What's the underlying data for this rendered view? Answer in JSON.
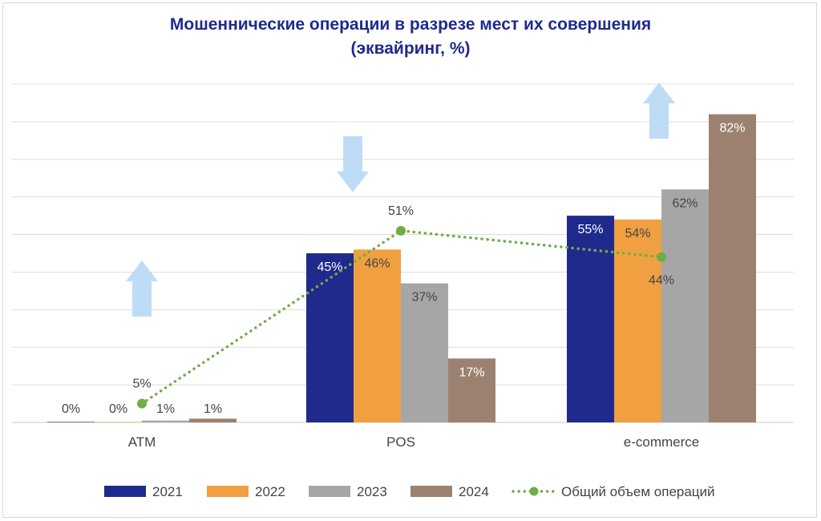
{
  "chart_data": {
    "type": "bar",
    "title_line1": "Мошеннические операции в разрезе мест их совершения",
    "title_line2": "(эквайринг, %)",
    "categories": [
      "ATM",
      "POS",
      "e-commerce"
    ],
    "ylim": [
      0,
      90
    ],
    "grid": true,
    "legend_position": "bottom",
    "series": [
      {
        "name": "2021",
        "color": "#1f2a8c",
        "values": [
          0,
          45,
          55
        ],
        "labels": [
          "0%",
          "45%",
          "55%"
        ]
      },
      {
        "name": "2022",
        "color": "#f0a040",
        "values": [
          0,
          46,
          54
        ],
        "labels": [
          "0%",
          "46%",
          "54%"
        ]
      },
      {
        "name": "2023",
        "color": "#a6a6a6",
        "values": [
          0.5,
          37,
          62
        ],
        "labels": [
          "1%",
          "37%",
          "62%"
        ]
      },
      {
        "name": "2024",
        "color": "#9c8170",
        "values": [
          1,
          17,
          82
        ],
        "labels": [
          "1%",
          "17%",
          "82%"
        ]
      }
    ],
    "line_series": {
      "name": "Общий объем операций",
      "color": "#70ad47",
      "values": [
        5,
        51,
        44
      ],
      "labels": [
        "5%",
        "51%",
        "44%"
      ]
    },
    "trend_arrows": [
      "up",
      "down",
      "up"
    ]
  }
}
